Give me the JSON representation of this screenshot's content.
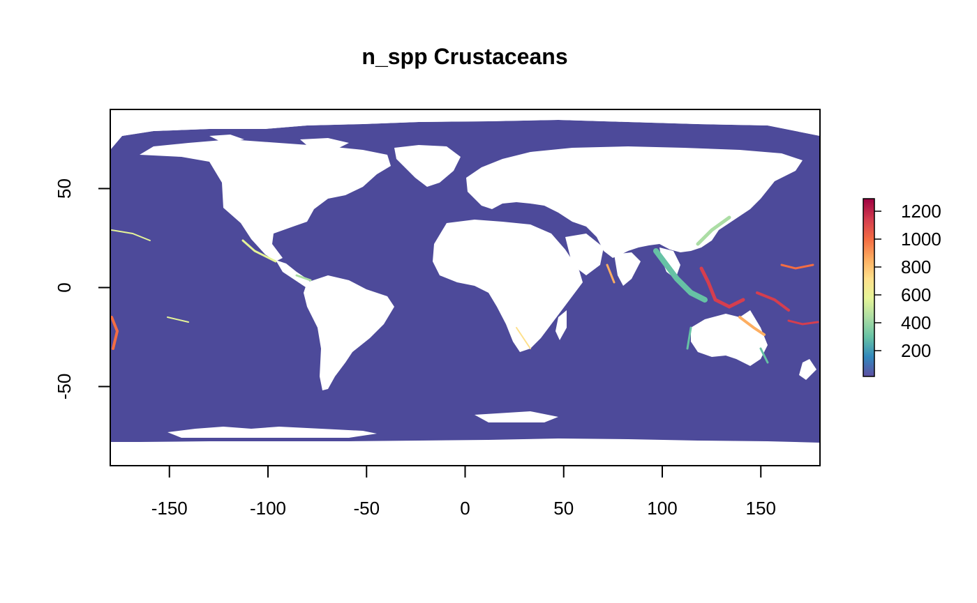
{
  "title": "n_spp Crustaceans",
  "map": {
    "land_color": "#ffffff",
    "ocean_color": "#4d4a9a",
    "x_ticks": [
      -150,
      -100,
      -50,
      0,
      50,
      100,
      150
    ],
    "y_ticks": [
      -50,
      0,
      50
    ],
    "xlim": [
      -180,
      180
    ],
    "ylim": [
      -90,
      90
    ]
  },
  "colorbar": {
    "ticks": [
      "200",
      "400",
      "600",
      "800",
      "1000",
      "1200"
    ],
    "range": [
      15,
      1290
    ],
    "palette": [
      "#5e4fa2",
      "#3288bd",
      "#66c2a5",
      "#abdda4",
      "#e6f598",
      "#fee08b",
      "#fdae61",
      "#f46d43",
      "#d53e4f",
      "#9e0142"
    ]
  },
  "chart_data": {
    "type": "heatmap",
    "title": "n_spp Crustaceans",
    "xlabel": "",
    "ylabel": "",
    "xlim": [
      -180,
      180
    ],
    "ylim": [
      -90,
      90
    ],
    "x_ticks": [
      -150,
      -100,
      -50,
      0,
      50,
      100,
      150
    ],
    "y_ticks": [
      -50,
      0,
      50
    ],
    "colorbar_ticks": [
      200,
      400,
      600,
      800,
      1000,
      1200
    ],
    "value_range": [
      15,
      1290
    ],
    "grid": false
  }
}
